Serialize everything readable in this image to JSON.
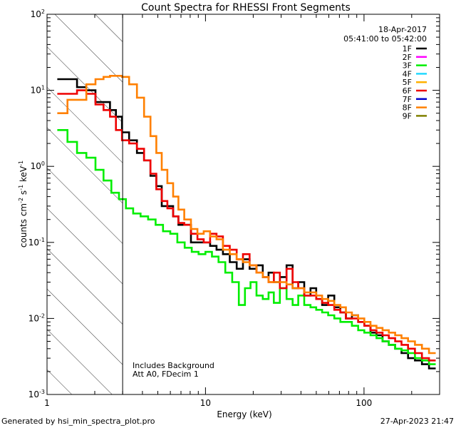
{
  "chart_data": {
    "type": "line",
    "title": "Count Spectra for RHESSI Front Segments",
    "xlabel": "Energy (keV)",
    "ylabel_parts": {
      "a": "counts cm",
      "b": "-2",
      "c": " s",
      "d": "-1",
      "e": " keV",
      "f": "-1"
    },
    "xscale": "log",
    "yscale": "log",
    "xlim": [
      1,
      300
    ],
    "ylim": [
      0.001,
      100
    ],
    "x_ticks": [
      {
        "v": 1,
        "label": "1"
      },
      {
        "v": 10,
        "label": "10"
      },
      {
        "v": 100,
        "label": "100"
      }
    ],
    "y_ticks": [
      {
        "v": 0.001,
        "base": "10",
        "exp": "-3"
      },
      {
        "v": 0.01,
        "base": "10",
        "exp": "-2"
      },
      {
        "v": 0.1,
        "base": "10",
        "exp": "-1"
      },
      {
        "v": 1,
        "base": "10",
        "exp": "0"
      },
      {
        "v": 10,
        "base": "10",
        "exp": "1"
      },
      {
        "v": 100,
        "base": "10",
        "exp": "2"
      }
    ],
    "shaded_region": {
      "x0": 1,
      "x1": 3,
      "style": "diagonal hatch"
    },
    "cutoff_line_x": 3,
    "date": "18-Apr-2017",
    "time_range": "05:41:00 to 05:42:00",
    "legend": [
      {
        "name": "1F",
        "color": "#000000"
      },
      {
        "name": "2F",
        "color": "#ff00ff"
      },
      {
        "name": "3F",
        "color": "#00ee00"
      },
      {
        "name": "4F",
        "color": "#22d8ff"
      },
      {
        "name": "5F",
        "color": "#ffb000"
      },
      {
        "name": "6F",
        "color": "#ee0000"
      },
      {
        "name": "7F",
        "color": "#0000cc"
      },
      {
        "name": "8F",
        "color": "#ff8000"
      },
      {
        "name": "9F",
        "color": "#808000"
      }
    ],
    "annotations": [
      "Includes Background",
      "Att A0, FDecim 1"
    ],
    "series": [
      {
        "name": "1F",
        "color": "#000000",
        "points": [
          [
            1.25,
            14
          ],
          [
            1.45,
            14
          ],
          [
            1.65,
            11
          ],
          [
            1.9,
            10
          ],
          [
            2.15,
            7
          ],
          [
            2.4,
            7
          ],
          [
            2.6,
            5.5
          ],
          [
            2.85,
            4.5
          ],
          [
            3.1,
            2.8
          ],
          [
            3.5,
            2.2
          ],
          [
            3.9,
            1.5
          ],
          [
            4.3,
            1.2
          ],
          [
            4.7,
            0.75
          ],
          [
            5.1,
            0.55
          ],
          [
            5.5,
            0.3
          ],
          [
            6,
            0.3
          ],
          [
            6.5,
            0.22
          ],
          [
            7,
            0.17
          ],
          [
            7.7,
            0.17
          ],
          [
            8.5,
            0.1
          ],
          [
            9.3,
            0.1
          ],
          [
            10.2,
            0.1
          ],
          [
            11.2,
            0.09
          ],
          [
            12.3,
            0.08
          ],
          [
            13.5,
            0.07
          ],
          [
            15,
            0.055
          ],
          [
            16.5,
            0.045
          ],
          [
            18,
            0.06
          ],
          [
            20,
            0.045
          ],
          [
            22,
            0.05
          ],
          [
            24,
            0.035
          ],
          [
            26,
            0.04
          ],
          [
            28,
            0.03
          ],
          [
            31,
            0.035
          ],
          [
            34,
            0.05
          ],
          [
            37,
            0.025
          ],
          [
            40,
            0.03
          ],
          [
            44,
            0.02
          ],
          [
            48,
            0.025
          ],
          [
            52,
            0.018
          ],
          [
            57,
            0.015
          ],
          [
            62,
            0.02
          ],
          [
            68,
            0.014
          ],
          [
            74,
            0.012
          ],
          [
            80,
            0.01
          ],
          [
            88,
            0.011
          ],
          [
            96,
            0.009
          ],
          [
            105,
            0.008
          ],
          [
            115,
            0.0065
          ],
          [
            125,
            0.006
          ],
          [
            137,
            0.005
          ],
          [
            150,
            0.0045
          ],
          [
            165,
            0.004
          ],
          [
            180,
            0.0035
          ],
          [
            200,
            0.003
          ],
          [
            220,
            0.0028
          ],
          [
            245,
            0.0025
          ],
          [
            270,
            0.0022
          ]
        ]
      },
      {
        "name": "3F",
        "color": "#00ee00",
        "points": [
          [
            1.25,
            3
          ],
          [
            1.45,
            2.1
          ],
          [
            1.65,
            1.5
          ],
          [
            1.9,
            1.3
          ],
          [
            2.15,
            0.9
          ],
          [
            2.4,
            0.65
          ],
          [
            2.7,
            0.45
          ],
          [
            3.0,
            0.37
          ],
          [
            3.3,
            0.28
          ],
          [
            3.7,
            0.24
          ],
          [
            4.1,
            0.22
          ],
          [
            4.6,
            0.2
          ],
          [
            5.1,
            0.17
          ],
          [
            5.7,
            0.14
          ],
          [
            6.3,
            0.13
          ],
          [
            7,
            0.1
          ],
          [
            7.8,
            0.085
          ],
          [
            8.6,
            0.075
          ],
          [
            9.5,
            0.07
          ],
          [
            10.5,
            0.075
          ],
          [
            11.5,
            0.065
          ],
          [
            12.7,
            0.055
          ],
          [
            14,
            0.04
          ],
          [
            15.5,
            0.03
          ],
          [
            17,
            0.015
          ],
          [
            18.5,
            0.025
          ],
          [
            20,
            0.03
          ],
          [
            22,
            0.02
          ],
          [
            24,
            0.018
          ],
          [
            26,
            0.022
          ],
          [
            28,
            0.016
          ],
          [
            31,
            0.025
          ],
          [
            34,
            0.018
          ],
          [
            37,
            0.015
          ],
          [
            40,
            0.02
          ],
          [
            44,
            0.015
          ],
          [
            48,
            0.014
          ],
          [
            52,
            0.013
          ],
          [
            57,
            0.012
          ],
          [
            62,
            0.011
          ],
          [
            68,
            0.01
          ],
          [
            74,
            0.009
          ],
          [
            80,
            0.009
          ],
          [
            88,
            0.008
          ],
          [
            96,
            0.007
          ],
          [
            105,
            0.0065
          ],
          [
            115,
            0.006
          ],
          [
            125,
            0.0055
          ],
          [
            137,
            0.005
          ],
          [
            150,
            0.0045
          ],
          [
            165,
            0.004
          ],
          [
            180,
            0.0038
          ],
          [
            200,
            0.0035
          ],
          [
            220,
            0.003
          ],
          [
            245,
            0.0028
          ],
          [
            270,
            0.0025
          ]
        ]
      },
      {
        "name": "6F",
        "color": "#ee0000",
        "points": [
          [
            1.25,
            9
          ],
          [
            1.45,
            9
          ],
          [
            1.65,
            10
          ],
          [
            1.9,
            9
          ],
          [
            2.15,
            6.5
          ],
          [
            2.4,
            5.5
          ],
          [
            2.6,
            4.5
          ],
          [
            2.85,
            3
          ],
          [
            3.1,
            2.2
          ],
          [
            3.5,
            2.0
          ],
          [
            3.9,
            1.7
          ],
          [
            4.3,
            1.2
          ],
          [
            4.7,
            0.8
          ],
          [
            5.1,
            0.5
          ],
          [
            5.5,
            0.35
          ],
          [
            6,
            0.28
          ],
          [
            6.5,
            0.22
          ],
          [
            7,
            0.18
          ],
          [
            7.7,
            0.17
          ],
          [
            8.5,
            0.13
          ],
          [
            9.3,
            0.11
          ],
          [
            10.2,
            0.1
          ],
          [
            11.2,
            0.13
          ],
          [
            12.3,
            0.12
          ],
          [
            13.5,
            0.09
          ],
          [
            15,
            0.08
          ],
          [
            16.5,
            0.06
          ],
          [
            18,
            0.07
          ],
          [
            20,
            0.05
          ],
          [
            22,
            0.04
          ],
          [
            24,
            0.035
          ],
          [
            26,
            0.03
          ],
          [
            28,
            0.04
          ],
          [
            31,
            0.025
          ],
          [
            34,
            0.045
          ],
          [
            37,
            0.03
          ],
          [
            40,
            0.025
          ],
          [
            44,
            0.02
          ],
          [
            48,
            0.02
          ],
          [
            52,
            0.018
          ],
          [
            57,
            0.016
          ],
          [
            62,
            0.015
          ],
          [
            68,
            0.013
          ],
          [
            74,
            0.012
          ],
          [
            80,
            0.01
          ],
          [
            88,
            0.01
          ],
          [
            96,
            0.009
          ],
          [
            105,
            0.008
          ],
          [
            115,
            0.007
          ],
          [
            125,
            0.0065
          ],
          [
            137,
            0.006
          ],
          [
            150,
            0.0055
          ],
          [
            165,
            0.005
          ],
          [
            180,
            0.0045
          ],
          [
            200,
            0.004
          ],
          [
            220,
            0.0035
          ],
          [
            245,
            0.003
          ],
          [
            270,
            0.0028
          ]
        ]
      },
      {
        "name": "8F",
        "color": "#ff8000",
        "points": [
          [
            1.25,
            5
          ],
          [
            1.45,
            7.5
          ],
          [
            1.65,
            7.5
          ],
          [
            1.9,
            12
          ],
          [
            2.15,
            14
          ],
          [
            2.4,
            15
          ],
          [
            2.6,
            15.5
          ],
          [
            2.85,
            15.5
          ],
          [
            3.1,
            15
          ],
          [
            3.5,
            12
          ],
          [
            3.9,
            8
          ],
          [
            4.3,
            4.5
          ],
          [
            4.7,
            2.5
          ],
          [
            5.1,
            1.5
          ],
          [
            5.5,
            0.9
          ],
          [
            6,
            0.6
          ],
          [
            6.5,
            0.4
          ],
          [
            7,
            0.27
          ],
          [
            7.7,
            0.2
          ],
          [
            8.5,
            0.15
          ],
          [
            9.3,
            0.13
          ],
          [
            10.2,
            0.14
          ],
          [
            11.2,
            0.12
          ],
          [
            12.3,
            0.11
          ],
          [
            13.5,
            0.08
          ],
          [
            15,
            0.07
          ],
          [
            16.5,
            0.06
          ],
          [
            18,
            0.055
          ],
          [
            20,
            0.05
          ],
          [
            22,
            0.04
          ],
          [
            24,
            0.035
          ],
          [
            26,
            0.03
          ],
          [
            28,
            0.03
          ],
          [
            31,
            0.03
          ],
          [
            34,
            0.028
          ],
          [
            37,
            0.025
          ],
          [
            40,
            0.025
          ],
          [
            44,
            0.022
          ],
          [
            48,
            0.022
          ],
          [
            52,
            0.02
          ],
          [
            57,
            0.018
          ],
          [
            62,
            0.017
          ],
          [
            68,
            0.015
          ],
          [
            74,
            0.014
          ],
          [
            80,
            0.012
          ],
          [
            88,
            0.011
          ],
          [
            96,
            0.01
          ],
          [
            105,
            0.009
          ],
          [
            115,
            0.008
          ],
          [
            125,
            0.0075
          ],
          [
            137,
            0.007
          ],
          [
            150,
            0.0065
          ],
          [
            165,
            0.006
          ],
          [
            180,
            0.0055
          ],
          [
            200,
            0.005
          ],
          [
            220,
            0.0045
          ],
          [
            245,
            0.004
          ],
          [
            270,
            0.0035
          ]
        ]
      }
    ]
  },
  "footer": {
    "left": "Generated by hsi_min_spectra_plot.pro",
    "right": "27-Apr-2023 21:47"
  }
}
